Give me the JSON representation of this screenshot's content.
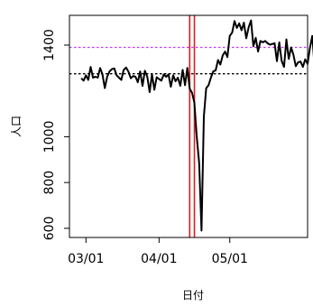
{
  "chart_data": {
    "type": "line",
    "xlabel": "日付",
    "ylabel": "人口",
    "x_ticks": [
      {
        "date": "2020-03-01",
        "label": "03/01"
      },
      {
        "date": "2020-04-01",
        "label": "04/01"
      },
      {
        "date": "2020-05-01",
        "label": "05/01"
      }
    ],
    "y_ticks": [
      600,
      800,
      1000,
      1400
    ],
    "xlim": [
      "2020-02-23",
      "2020-06-03"
    ],
    "ylim": [
      560,
      1530
    ],
    "grid": false,
    "reference_lines": [
      {
        "orientation": "horizontal",
        "value": 1390,
        "style": "dotted",
        "color": "#cc33ff"
      },
      {
        "orientation": "horizontal",
        "value": 1275,
        "style": "dotted",
        "color": "#000000"
      },
      {
        "orientation": "vertical",
        "value": "2020-04-14",
        "style": "solid",
        "color": "#e41a1c"
      },
      {
        "orientation": "vertical",
        "value": "2020-04-16",
        "style": "solid",
        "color": "#e41a1c"
      }
    ],
    "series": [
      {
        "color": "#000000",
        "x_start": "2020-02-28",
        "values": [
          1255,
          1245,
          1268,
          1248,
          1305,
          1258,
          1262,
          1258,
          1300,
          1272,
          1212,
          1262,
          1285,
          1295,
          1298,
          1268,
          1258,
          1248,
          1292,
          1302,
          1285,
          1255,
          1265,
          1262,
          1238,
          1285,
          1222,
          1288,
          1262,
          1195,
          1272,
          1205,
          1260,
          1252,
          1245,
          1272,
          1262,
          1272,
          1218,
          1268,
          1242,
          1258,
          1222,
          1292,
          1225,
          1300,
          1210,
          1192,
          1148,
          1000,
          885,
          590,
          1088,
          1212,
          1225,
          1258,
          1285,
          1290,
          1335,
          1315,
          1355,
          1372,
          1348,
          1440,
          1455,
          1505,
          1475,
          1495,
          1465,
          1498,
          1430,
          1478,
          1508,
          1395,
          1432,
          1372,
          1418,
          1412,
          1418,
          1408,
          1402,
          1405,
          1408,
          1330,
          1412,
          1332,
          1305,
          1425,
          1340,
          1390,
          1358,
          1308,
          1325,
          1328,
          1305,
          1338,
          1318,
          1388,
          1440,
          1305,
          1320
        ]
      }
    ]
  }
}
